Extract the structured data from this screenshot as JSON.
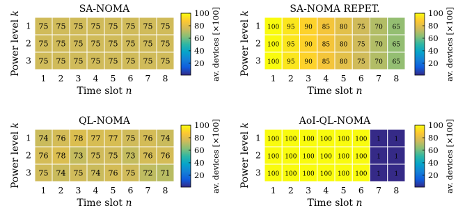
{
  "colors": {
    "cell_border": "#ffffff",
    "background": "#ffffff"
  },
  "common": {
    "colorbar_ticks": [
      "100",
      "80",
      "60",
      "40",
      "20"
    ],
    "colorbar_label": "av. devices [×100]",
    "xlabel": "Time slot n",
    "ylabel": "Power level k",
    "x_ticks": [
      "1",
      "2",
      "3",
      "4",
      "5",
      "6",
      "7",
      "8"
    ],
    "y_ticks": [
      "1",
      "2",
      "3"
    ]
  },
  "chart_data": [
    {
      "type": "heatmap",
      "title": "SA-NOMA",
      "xlabel": "Time slot n",
      "ylabel": "Power level k",
      "x": [
        1,
        2,
        3,
        4,
        5,
        6,
        7,
        8
      ],
      "y": [
        1,
        2,
        3
      ],
      "values": [
        [
          75,
          75,
          75,
          75,
          75,
          75,
          75,
          75
        ],
        [
          75,
          75,
          75,
          75,
          75,
          75,
          75,
          75
        ],
        [
          75,
          75,
          75,
          75,
          75,
          75,
          75,
          75
        ]
      ],
      "colorbar": {
        "label": "av. devices [×100]",
        "range": [
          1,
          100
        ],
        "ticks": [
          20,
          40,
          60,
          80,
          100
        ],
        "colormap": "parula"
      }
    },
    {
      "type": "heatmap",
      "title": "SA-NOMA REPET.",
      "xlabel": "Time slot n",
      "ylabel": "Power level k",
      "x": [
        1,
        2,
        3,
        4,
        5,
        6,
        7,
        8
      ],
      "y": [
        1,
        2,
        3
      ],
      "values": [
        [
          100,
          95,
          90,
          85,
          80,
          75,
          70,
          65
        ],
        [
          100,
          95,
          90,
          85,
          80,
          75,
          70,
          65
        ],
        [
          100,
          95,
          90,
          85,
          80,
          75,
          70,
          65
        ]
      ],
      "colorbar": {
        "label": "av. devices [×100]",
        "range": [
          1,
          100
        ],
        "ticks": [
          20,
          40,
          60,
          80,
          100
        ],
        "colormap": "parula"
      }
    },
    {
      "type": "heatmap",
      "title": "QL-NOMA",
      "xlabel": "Time slot n",
      "ylabel": "Power level k",
      "x": [
        1,
        2,
        3,
        4,
        5,
        6,
        7,
        8
      ],
      "y": [
        1,
        2,
        3
      ],
      "values": [
        [
          74,
          76,
          78,
          77,
          77,
          75,
          76,
          74
        ],
        [
          76,
          78,
          73,
          75,
          75,
          73,
          76,
          76
        ],
        [
          75,
          74,
          75,
          74,
          76,
          75,
          72,
          71
        ]
      ],
      "colorbar": {
        "label": "av. devices [×100]",
        "range": [
          1,
          100
        ],
        "ticks": [
          20,
          40,
          60,
          80,
          100
        ],
        "colormap": "parula"
      }
    },
    {
      "type": "heatmap",
      "title": "AoI-QL-NOMA",
      "xlabel": "Time slot n",
      "ylabel": "Power level k",
      "x": [
        1,
        2,
        3,
        4,
        5,
        6,
        7,
        8
      ],
      "y": [
        1,
        2,
        3
      ],
      "values": [
        [
          100,
          100,
          100,
          100,
          100,
          100,
          1,
          1
        ],
        [
          100,
          100,
          100,
          100,
          100,
          100,
          1,
          1
        ],
        [
          100,
          100,
          100,
          100,
          100,
          100,
          1,
          1
        ]
      ],
      "colorbar": {
        "label": "av. devices [×100]",
        "range": [
          1,
          100
        ],
        "ticks": [
          20,
          40,
          60,
          80,
          100
        ],
        "colormap": "parula"
      }
    }
  ]
}
